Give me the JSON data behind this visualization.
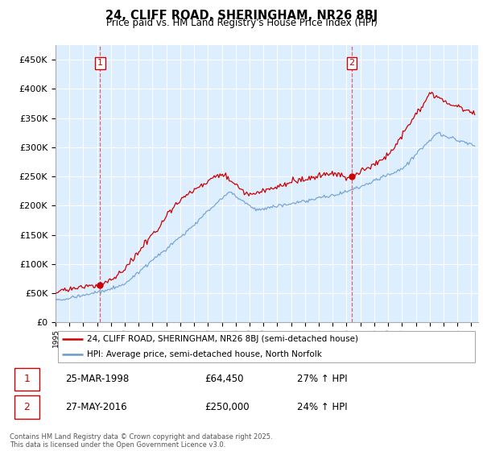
{
  "title": "24, CLIFF ROAD, SHERINGHAM, NR26 8BJ",
  "subtitle": "Price paid vs. HM Land Registry's House Price Index (HPI)",
  "legend_label_red": "24, CLIFF ROAD, SHERINGHAM, NR26 8BJ (semi-detached house)",
  "legend_label_blue": "HPI: Average price, semi-detached house, North Norfolk",
  "annotation1_date": "25-MAR-1998",
  "annotation1_price": "£64,450",
  "annotation1_hpi": "27% ↑ HPI",
  "annotation2_date": "27-MAY-2016",
  "annotation2_price": "£250,000",
  "annotation2_hpi": "24% ↑ HPI",
  "copyright": "Contains HM Land Registry data © Crown copyright and database right 2025.\nThis data is licensed under the Open Government Licence v3.0.",
  "ylim": [
    0,
    475000
  ],
  "yticks": [
    0,
    50000,
    100000,
    150000,
    200000,
    250000,
    300000,
    350000,
    400000,
    450000
  ],
  "xlim_start": 1995.0,
  "xlim_end": 2025.5,
  "sale1_x": 1998.21,
  "sale1_y": 64450,
  "sale2_x": 2016.38,
  "sale2_y": 250000,
  "bg_chart_color": "#ddeeff",
  "grid_color": "#ffffff",
  "red_color": "#cc0000",
  "blue_color": "#6699cc",
  "red_dot_color": "#cc0000",
  "annotation_box_color": "#cc0000",
  "vline_color": "#dd6666",
  "vline_style": "--"
}
